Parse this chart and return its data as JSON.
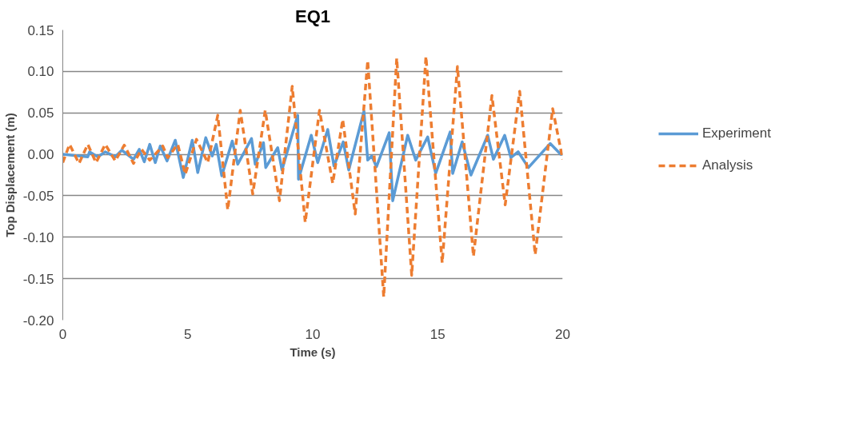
{
  "chart_data": {
    "type": "line",
    "title": "EQ1",
    "xlabel": "Time (s)",
    "ylabel": "Top Displacement (m)",
    "xlim": [
      0,
      20
    ],
    "xticks": [
      0,
      5,
      10,
      15,
      20
    ],
    "ylim": [
      -0.2,
      0.15
    ],
    "yticks": [
      {
        "value": -0.2,
        "label": "-0.20"
      },
      {
        "value": -0.15,
        "label": "-0.15"
      },
      {
        "value": -0.1,
        "label": "-0.10"
      },
      {
        "value": -0.05,
        "label": "-0.05"
      },
      {
        "value": 0,
        "label": "0.00"
      },
      {
        "value": 0.05,
        "label": "0.05"
      },
      {
        "value": 0.1,
        "label": "0.10"
      },
      {
        "value": 0.15,
        "label": "0.15"
      }
    ],
    "grid": "y",
    "legend": "right",
    "marker": "none",
    "series": [
      {
        "name": "Experiment",
        "color": "#5b9bd5",
        "line_style": "solid",
        "x": [
          0,
          1.0,
          1.07,
          1.4,
          1.7,
          2.1,
          2.36,
          2.83,
          3.06,
          3.26,
          3.48,
          3.7,
          3.9,
          4.17,
          4.5,
          4.82,
          5.18,
          5.4,
          5.72,
          5.98,
          6.14,
          6.36,
          6.78,
          7.0,
          7.55,
          7.7,
          8.03,
          8.12,
          8.6,
          8.77,
          9.4,
          9.43,
          9.94,
          10.2,
          10.6,
          10.85,
          11.22,
          11.44,
          12.05,
          12.2,
          12.36,
          12.55,
          13.06,
          13.2,
          13.8,
          14.12,
          14.6,
          14.92,
          15.5,
          15.6,
          15.98,
          16.33,
          17.0,
          17.23,
          17.68,
          17.93,
          18.22,
          18.63,
          19.5,
          19.92,
          20
        ],
        "values": [
          0,
          -0.003,
          0.003,
          -0.003,
          0.003,
          -0.003,
          0.005,
          -0.006,
          0.006,
          -0.009,
          0.012,
          -0.01,
          0.01,
          -0.008,
          0.017,
          -0.028,
          0.017,
          -0.022,
          0.02,
          -0.002,
          0.012,
          -0.026,
          0.016,
          -0.012,
          0.019,
          -0.012,
          0.014,
          -0.016,
          0.008,
          -0.019,
          0.047,
          -0.03,
          0.023,
          -0.01,
          0.03,
          -0.014,
          0.015,
          -0.019,
          0.052,
          -0.007,
          -0.002,
          -0.015,
          0.026,
          -0.056,
          0.023,
          -0.007,
          0.021,
          -0.023,
          0.027,
          -0.023,
          0.015,
          -0.025,
          0.023,
          -0.006,
          0.023,
          -0.004,
          0.003,
          -0.016,
          0.013,
          0.0,
          0
        ]
      },
      {
        "name": "Analysis",
        "color": "#ed7d31",
        "line_style": "dashed",
        "x": [
          0,
          0.27,
          0.65,
          1.0,
          1.33,
          1.7,
          2.1,
          2.46,
          2.83,
          3.15,
          3.48,
          4.0,
          4.2,
          4.6,
          4.9,
          5.35,
          5.8,
          6.2,
          6.6,
          7.1,
          7.6,
          8.1,
          8.67,
          9.18,
          9.7,
          10.27,
          10.8,
          11.2,
          11.7,
          12.2,
          12.84,
          13.36,
          13.96,
          14.53,
          15.18,
          15.79,
          16.43,
          17.17,
          17.7,
          18.28,
          18.9,
          19.6,
          20
        ],
        "values": [
          -0.01,
          0.012,
          -0.011,
          0.012,
          -0.01,
          0.012,
          -0.008,
          0.011,
          -0.011,
          0.006,
          -0.007,
          0.01,
          -0.004,
          0.012,
          -0.024,
          0.018,
          -0.01,
          0.047,
          -0.067,
          0.053,
          -0.048,
          0.053,
          -0.056,
          0.082,
          -0.082,
          0.053,
          -0.035,
          0.042,
          -0.072,
          0.113,
          -0.172,
          0.116,
          -0.146,
          0.118,
          -0.131,
          0.106,
          -0.123,
          0.071,
          -0.061,
          0.076,
          -0.121,
          0.055,
          -0.006
        ]
      }
    ]
  }
}
